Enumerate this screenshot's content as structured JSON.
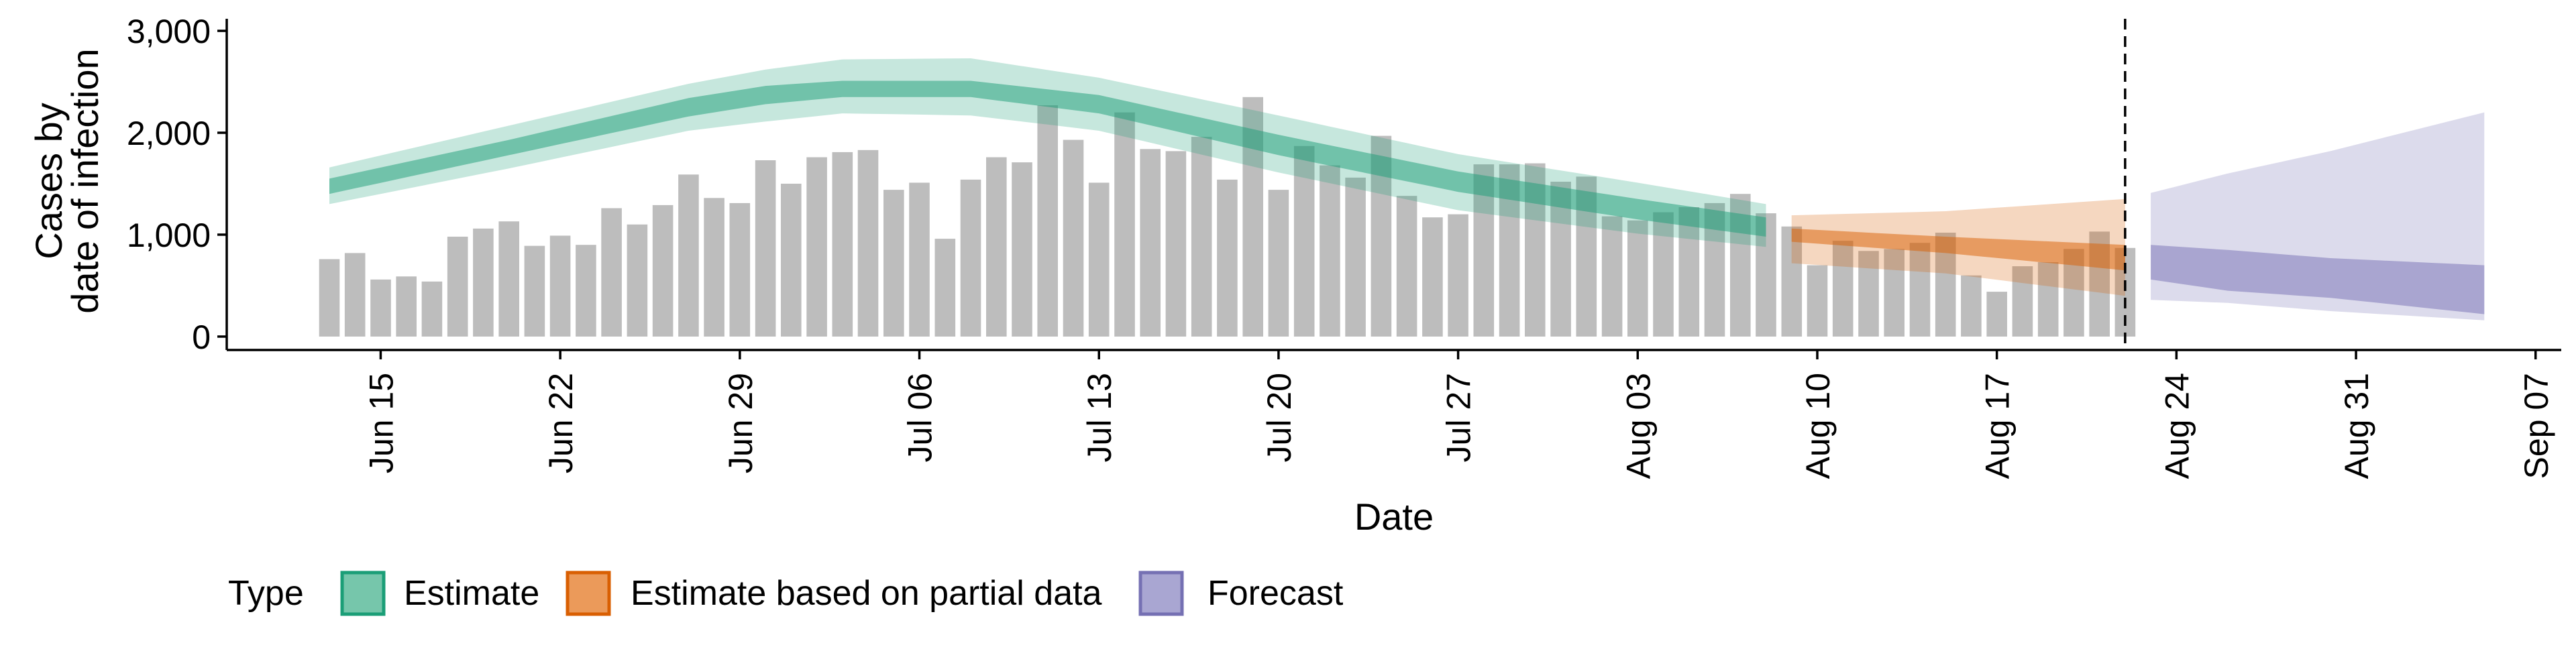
{
  "chart_data": {
    "type": "bar",
    "title": "",
    "xlabel": "Date",
    "ylabel_lines": [
      "Cases by",
      "date of infection"
    ],
    "ylim": [
      0,
      3000
    ],
    "y_ticks": [
      0,
      1000,
      2000,
      3000
    ],
    "y_tick_labels": [
      "0",
      "1,000",
      "2,000",
      "3,000"
    ],
    "xlim": [
      "2020-06-09",
      "2020-09-08"
    ],
    "x_ticks": [
      "2020-06-15",
      "2020-06-22",
      "2020-06-29",
      "2020-07-06",
      "2020-07-13",
      "2020-07-20",
      "2020-07-27",
      "2020-08-03",
      "2020-08-10",
      "2020-08-17",
      "2020-08-24",
      "2020-08-31",
      "2020-09-07"
    ],
    "x_tick_labels": [
      "Jun 15",
      "Jun 22",
      "Jun 29",
      "Jul 06",
      "Jul 13",
      "Jul 20",
      "Jul 27",
      "Aug 03",
      "Aug 10",
      "Aug 17",
      "Aug 24",
      "Aug 31",
      "Sep 07"
    ],
    "forecast_line_date": "2020-08-22",
    "grid": false,
    "legend_position": "bottom",
    "legend_title": "Type",
    "legend_items": [
      {
        "label": "Estimate",
        "fill": "#76c6ab",
        "stroke": "#1b9e77"
      },
      {
        "label": "Estimate based on partial data",
        "fill": "#eb9a5a",
        "stroke": "#d95f02"
      },
      {
        "label": "Forecast",
        "fill": "#a9a6d2",
        "stroke": "#7570b3"
      }
    ],
    "bar_color": "#bdbdbd",
    "bars": {
      "start_date": "2020-06-13",
      "values": [
        760,
        820,
        560,
        590,
        540,
        980,
        1060,
        1130,
        890,
        990,
        900,
        1260,
        1100,
        1290,
        1590,
        1360,
        1310,
        1730,
        1500,
        1760,
        1810,
        1830,
        1440,
        1510,
        960,
        1540,
        1760,
        1710,
        2270,
        1930,
        1510,
        2200,
        1840,
        1820,
        1960,
        1540,
        2350,
        1440,
        1870,
        1680,
        1560,
        1970,
        1380,
        1170,
        1200,
        1690,
        1690,
        1700,
        1520,
        1570,
        1180,
        1140,
        1220,
        1270,
        1310,
        1400,
        1210,
        1080,
        700,
        940,
        840,
        860,
        920,
        1020,
        600,
        440,
        690,
        730,
        860,
        1030,
        870
      ]
    },
    "series": [
      {
        "name": "Estimate",
        "color": "#1b9e77",
        "start_date": "2020-06-13",
        "end_date": "2020-08-08",
        "knot_dates": [
          "2020-06-13",
          "2020-06-20",
          "2020-06-27",
          "2020-06-30",
          "2020-07-03",
          "2020-07-08",
          "2020-07-13",
          "2020-07-20",
          "2020-07-27",
          "2020-08-03",
          "2020-08-08"
        ],
        "median": [
          1470,
          1850,
          2250,
          2370,
          2430,
          2430,
          2280,
          1880,
          1520,
          1250,
          1070
        ],
        "ci50": [
          [
            1400,
            1550
          ],
          [
            1780,
            1930
          ],
          [
            2160,
            2340
          ],
          [
            2280,
            2460
          ],
          [
            2350,
            2510
          ],
          [
            2350,
            2510
          ],
          [
            2190,
            2370
          ],
          [
            1780,
            1980
          ],
          [
            1420,
            1620
          ],
          [
            1150,
            1350
          ],
          [
            980,
            1170
          ]
        ],
        "ci90": [
          [
            1300,
            1660
          ],
          [
            1650,
            2070
          ],
          [
            2020,
            2480
          ],
          [
            2110,
            2620
          ],
          [
            2190,
            2720
          ],
          [
            2170,
            2730
          ],
          [
            2020,
            2540
          ],
          [
            1610,
            2170
          ],
          [
            1240,
            1790
          ],
          [
            1010,
            1510
          ],
          [
            880,
            1300
          ]
        ]
      },
      {
        "name": "Estimate based on partial data",
        "color": "#d95f02",
        "start_date": "2020-08-09",
        "end_date": "2020-08-22",
        "knot_dates": [
          "2020-08-09",
          "2020-08-15",
          "2020-08-22"
        ],
        "median": [
          1000,
          900,
          780
        ],
        "ci50": [
          [
            930,
            1060
          ],
          [
            820,
            980
          ],
          [
            650,
            900
          ]
        ],
        "ci90": [
          [
            720,
            1190
          ],
          [
            620,
            1230
          ],
          [
            400,
            1350
          ]
        ]
      },
      {
        "name": "Forecast",
        "color": "#7570b3",
        "start_date": "2020-08-23",
        "end_date": "2020-09-05",
        "knot_dates": [
          "2020-08-23",
          "2020-08-26",
          "2020-08-30",
          "2020-09-05"
        ],
        "median": [
          700,
          650,
          600,
          480
        ],
        "ci50": [
          [
            560,
            900
          ],
          [
            450,
            850
          ],
          [
            380,
            770
          ],
          [
            220,
            700
          ]
        ],
        "ci90": [
          [
            360,
            1410
          ],
          [
            330,
            1600
          ],
          [
            250,
            1820
          ],
          [
            160,
            2200
          ]
        ]
      }
    ]
  }
}
